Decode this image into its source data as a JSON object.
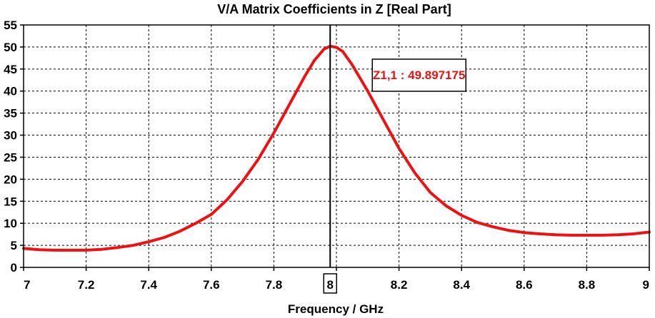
{
  "chart_data": {
    "type": "line",
    "title": "V/A Matrix Coefficients in Z [Real Part]",
    "xlabel": "Frequency / GHz",
    "ylabel": "",
    "xlim": [
      7,
      9
    ],
    "ylim": [
      0,
      55
    ],
    "x_ticks": [
      "7",
      "7.2",
      "7.4",
      "7.6",
      "7.8",
      "8",
      "8.2",
      "8.4",
      "8.6",
      "8.8",
      "9"
    ],
    "y_ticks": [
      "0",
      "5",
      "10",
      "15",
      "20",
      "25",
      "30",
      "35",
      "40",
      "45",
      "50",
      "55"
    ],
    "grid": true,
    "series": [
      {
        "color": "#ee1111",
        "x": [
          7.0,
          7.05,
          7.1,
          7.15,
          7.2,
          7.25,
          7.3,
          7.35,
          7.4,
          7.45,
          7.5,
          7.55,
          7.6,
          7.65,
          7.7,
          7.75,
          7.8,
          7.85,
          7.9,
          7.93,
          7.96,
          7.98,
          8.0,
          8.02,
          8.05,
          8.1,
          8.15,
          8.2,
          8.25,
          8.3,
          8.35,
          8.4,
          8.45,
          8.5,
          8.55,
          8.6,
          8.65,
          8.7,
          8.75,
          8.8,
          8.85,
          8.9,
          8.95,
          9.0
        ],
        "y": [
          4.3,
          4.0,
          3.9,
          3.9,
          3.9,
          4.1,
          4.5,
          5.0,
          5.8,
          6.8,
          8.2,
          10.0,
          12.0,
          15.3,
          19.5,
          24.5,
          30.5,
          37.0,
          43.5,
          47.0,
          49.5,
          50.2,
          49.9,
          49.0,
          46.0,
          40.0,
          33.5,
          27.0,
          21.5,
          17.0,
          14.0,
          11.8,
          10.2,
          9.2,
          8.4,
          7.9,
          7.6,
          7.4,
          7.3,
          7.3,
          7.3,
          7.4,
          7.6,
          8.0
        ]
      }
    ],
    "marker": {
      "x": 7.98,
      "x_label": "8",
      "label": "Z1,1 : 49.897175",
      "label_color": "#ee1111"
    }
  }
}
